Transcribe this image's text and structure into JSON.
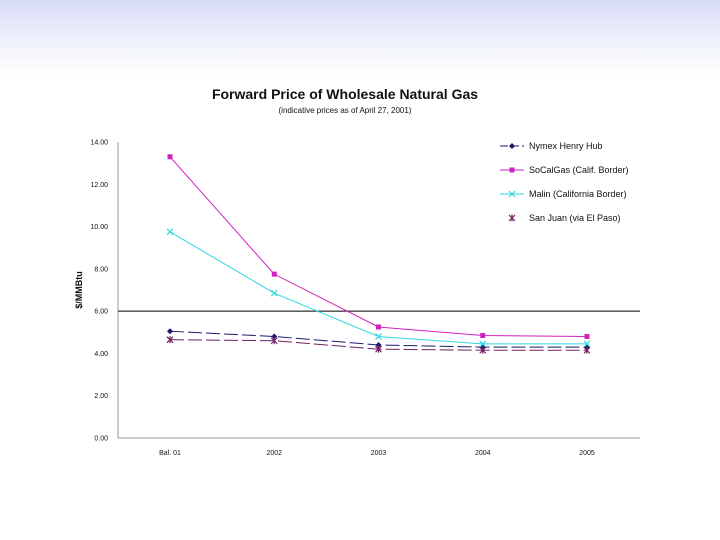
{
  "chart_data": {
    "type": "line",
    "title": "Forward Price of Wholesale Natural Gas",
    "subtitle": "(indicative prices as of April 27, 2001)",
    "ylabel": "$/MMBtu",
    "xlabel": "",
    "ylim": [
      0,
      14
    ],
    "yticks": [
      "0.00",
      "2.00",
      "4.00",
      "6.00",
      "8.00",
      "10.00",
      "12.00",
      "14.00"
    ],
    "reference_line": 6.0,
    "categories": [
      "Bal. 01",
      "2002",
      "2003",
      "2004",
      "2005"
    ],
    "legend_position": "top-right",
    "series": [
      {
        "name": "Nymex Henry Hub",
        "color": "#1a1a6e",
        "marker": "diamond",
        "dash": "long-dash",
        "values": [
          5.05,
          4.8,
          4.4,
          4.3,
          4.3
        ]
      },
      {
        "name": "SoCalGas (Calif. Border)",
        "color": "#d020c0",
        "marker": "square",
        "dash": "solid",
        "values": [
          13.3,
          7.75,
          5.25,
          4.85,
          4.8
        ]
      },
      {
        "name": "Malin (California Border)",
        "color": "#30d8e0",
        "marker": "x",
        "dash": "solid",
        "values": [
          9.75,
          6.85,
          4.8,
          4.45,
          4.45
        ]
      },
      {
        "name": "San Juan (via El Paso)",
        "color": "#702060",
        "marker": "asterisk",
        "dash": "long-dash",
        "values": [
          4.65,
          4.6,
          4.2,
          4.15,
          4.15
        ]
      }
    ]
  }
}
